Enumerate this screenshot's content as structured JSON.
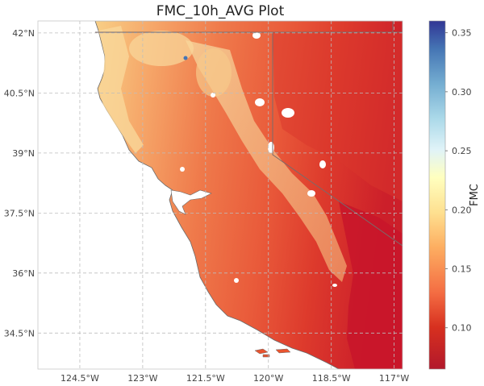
{
  "chart_data": {
    "type": "heatmap",
    "title": "FMC_10h_AVG Plot",
    "colorbar": {
      "label": "FMC",
      "range": [
        0.065,
        0.36
      ],
      "ticks": [
        "0.10",
        "0.15",
        "0.20",
        "0.25",
        "0.30",
        "0.35"
      ],
      "tick_values": [
        0.1,
        0.15,
        0.2,
        0.25,
        0.3,
        0.35
      ],
      "colormap": [
        "#b2182b",
        "#d7301f",
        "#f46d43",
        "#fdae61",
        "#fee090",
        "#ffffbf",
        "#e0f3f8",
        "#abd9e9",
        "#74add1",
        "#4575b4",
        "#313695"
      ]
    },
    "x_ticks": [
      "124.5°W",
      "123°W",
      "121.5°W",
      "120°W",
      "118.5°W",
      "117°W"
    ],
    "x_values": [
      -124.5,
      -123,
      -121.5,
      -120,
      -118.5,
      -117
    ],
    "y_ticks": [
      "34.5°N",
      "36°N",
      "37.5°N",
      "39°N",
      "40.5°N",
      "42°N"
    ],
    "y_values": [
      34.5,
      36,
      37.5,
      39,
      40.5,
      42
    ],
    "xlim": [
      -125.5,
      -116.8
    ],
    "ylim": [
      33.6,
      42.3
    ],
    "grid": true,
    "colors": {
      "ocean": "#ffffff",
      "coast": "#9aa0a6",
      "state_border": "#7a6a6a",
      "dry": "#c8102e",
      "mid": "#ef6a45",
      "moist": "#f6c98a"
    }
  }
}
